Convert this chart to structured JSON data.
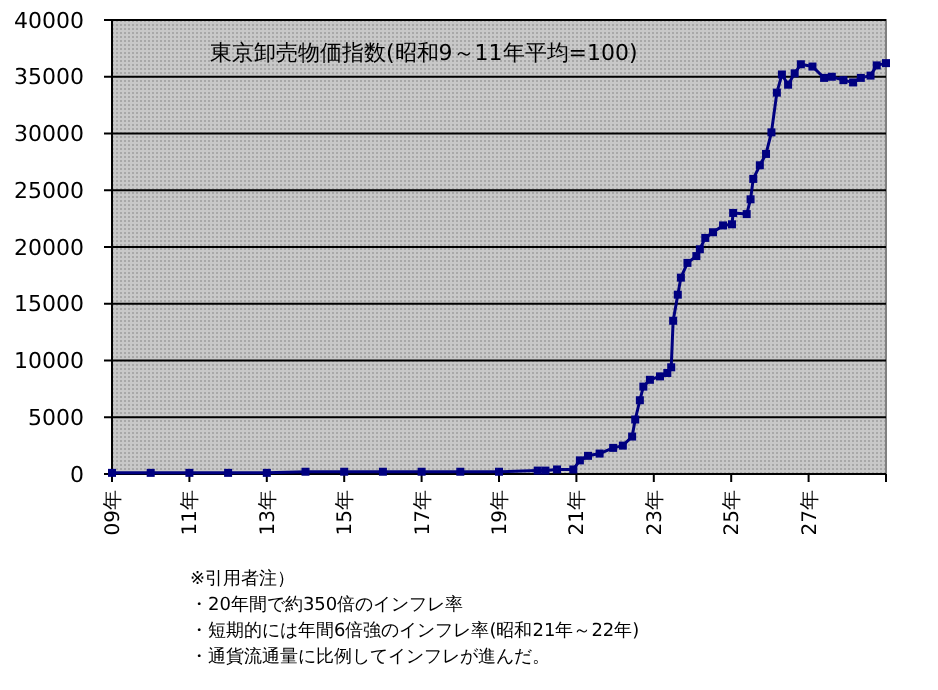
{
  "chart_data": {
    "type": "line",
    "title": "東京卸売物価指数(昭和9～11年平均=100)",
    "x": [
      9,
      10,
      11,
      12,
      13,
      14,
      15,
      16,
      17,
      18,
      19,
      20,
      20.2,
      20.5,
      20.92,
      21.09,
      21.3,
      21.6,
      21.95,
      22.2,
      22.44,
      22.52,
      22.64,
      22.73,
      22.9,
      23.16,
      23.35,
      23.45,
      23.5,
      23.62,
      23.7,
      23.87,
      24.1,
      24.19,
      24.33,
      24.53,
      24.79,
      25.02,
      25.05,
      25.4,
      25.5,
      25.57,
      25.74,
      25.9,
      26.04,
      26.18,
      26.31,
      26.47,
      26.64,
      26.8,
      27.1,
      27.4,
      27.6,
      27.9,
      28.15,
      28.35,
      28.6,
      28.76,
      29
    ],
    "series": [
      {
        "color": "#000080",
        "values": [
          100,
          100,
          100,
          100,
          100,
          200,
          200,
          200,
          200,
          200,
          200,
          300,
          300,
          400,
          400,
          1200,
          1600,
          1800,
          2300,
          2500,
          3300,
          4800,
          6500,
          7700,
          8300,
          8600,
          8900,
          9400,
          13500,
          15800,
          17300,
          18600,
          19200,
          19800,
          20800,
          21300,
          21900,
          22000,
          23000,
          22900,
          24200,
          26000,
          27200,
          28200,
          30100,
          33600,
          35200,
          34300,
          35300,
          36100,
          35900,
          34900,
          35000,
          34700,
          34500,
          34900,
          35100,
          36000,
          36200
        ]
      }
    ],
    "xlim": [
      9,
      29
    ],
    "xticks": [
      {
        "value": 9,
        "label": "09年"
      },
      {
        "value": 11,
        "label": "11年"
      },
      {
        "value": 13,
        "label": "13年"
      },
      {
        "value": 15,
        "label": "15年"
      },
      {
        "value": 17,
        "label": "17年"
      },
      {
        "value": 19,
        "label": "19年"
      },
      {
        "value": 21,
        "label": "21年"
      },
      {
        "value": 23,
        "label": "23年"
      },
      {
        "value": 25,
        "label": "25年"
      },
      {
        "value": 27,
        "label": "27年"
      },
      {
        "value": 29,
        "label": null
      }
    ],
    "ylim": [
      0,
      40000
    ],
    "yticks": [
      0,
      5000,
      10000,
      15000,
      20000,
      25000,
      30000,
      35000,
      40000
    ],
    "grid": "y",
    "marker": "square",
    "line_style": "solid",
    "annotations": [
      "※引用者注）",
      "・20年間で約350倍のインフレ率",
      "・短期的には年間6倍強のインフレ率(昭和21年～22年)",
      "・通貨流通量に比例してインフレが進んだ。"
    ]
  }
}
